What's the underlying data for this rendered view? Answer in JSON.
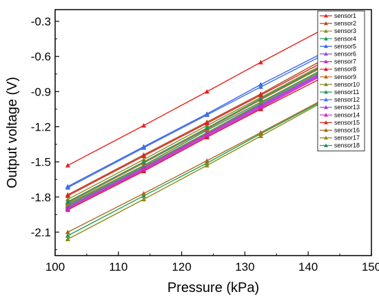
{
  "chart_data": {
    "type": "line",
    "xlabel": "Pressure (kPa)",
    "ylabel": "Output voltage (V)",
    "xlim": [
      100,
      150
    ],
    "ylim": [
      -2.3,
      -0.2
    ],
    "xticks": [
      100,
      110,
      120,
      130,
      140,
      150
    ],
    "yticks": [
      -2.1,
      -1.8,
      -1.5,
      -1.2,
      -0.9,
      -0.6,
      -0.3
    ],
    "ytick_labels": [
      "-2.1",
      "-1.8",
      "-1.5",
      "-1.2",
      "-0.9",
      "-0.6",
      "-0.3"
    ],
    "grid": false,
    "legend_position": "top-right",
    "marker": "triangle-up",
    "x": [
      102,
      114,
      124,
      132.5,
      142.3
    ],
    "series": [
      {
        "name": "sensor1",
        "color": "#e8201a",
        "values": [
          -1.53,
          -1.19,
          -0.9,
          -0.65,
          -0.37
        ]
      },
      {
        "name": "sensor2",
        "color": "#b5461a",
        "values": [
          -1.78,
          -1.44,
          -1.16,
          -0.92,
          -0.63
        ]
      },
      {
        "name": "sensor3",
        "color": "#8f8f1a",
        "values": [
          -1.82,
          -1.48,
          -1.19,
          -0.95,
          -0.67
        ]
      },
      {
        "name": "sensor4",
        "color": "#179a5a",
        "values": [
          -1.86,
          -1.53,
          -1.23,
          -0.99,
          -0.71
        ]
      },
      {
        "name": "sensor5",
        "color": "#3a63e3",
        "values": [
          -1.71,
          -1.37,
          -1.09,
          -0.84,
          -0.57
        ]
      },
      {
        "name": "sensor6",
        "color": "#8e4fd6",
        "values": [
          -1.88,
          -1.54,
          -1.25,
          -1.01,
          -0.73
        ]
      },
      {
        "name": "sensor7",
        "color": "#c22ad8",
        "values": [
          -1.9,
          -1.57,
          -1.28,
          -1.04,
          -0.76
        ]
      },
      {
        "name": "sensor8",
        "color": "#d81f1f",
        "values": [
          -1.91,
          -1.58,
          -1.29,
          -1.05,
          -0.78
        ]
      },
      {
        "name": "sensor9",
        "color": "#c06018",
        "values": [
          -1.85,
          -1.51,
          -1.22,
          -0.97,
          -0.69
        ]
      },
      {
        "name": "sensor10",
        "color": "#7f8a1f",
        "values": [
          -1.87,
          -1.54,
          -1.25,
          -1.0,
          -0.72
        ]
      },
      {
        "name": "sensor11",
        "color": "#1f9c56",
        "values": [
          -2.13,
          -1.79,
          -1.51,
          -1.26,
          -0.98
        ]
      },
      {
        "name": "sensor12",
        "color": "#3d74e6",
        "values": [
          -1.72,
          -1.38,
          -1.1,
          -0.86,
          -0.59
        ]
      },
      {
        "name": "sensor13",
        "color": "#8a3fd1",
        "values": [
          -1.89,
          -1.55,
          -1.26,
          -1.02,
          -0.74
        ]
      },
      {
        "name": "sensor14",
        "color": "#d12ac8",
        "values": [
          -1.9,
          -1.56,
          -1.27,
          -1.03,
          -0.75
        ]
      },
      {
        "name": "sensor15",
        "color": "#e02222",
        "values": [
          -1.79,
          -1.45,
          -1.17,
          -0.93,
          -0.65
        ]
      },
      {
        "name": "sensor16",
        "color": "#a8681a",
        "values": [
          -2.1,
          -1.77,
          -1.49,
          -1.25,
          -0.97
        ]
      },
      {
        "name": "sensor17",
        "color": "#8b8b12",
        "values": [
          -2.16,
          -1.82,
          -1.53,
          -1.28,
          -0.99
        ]
      },
      {
        "name": "sensor18",
        "color": "#1a8e62",
        "values": [
          -1.84,
          -1.5,
          -1.21,
          -0.96,
          -0.68
        ]
      }
    ]
  }
}
